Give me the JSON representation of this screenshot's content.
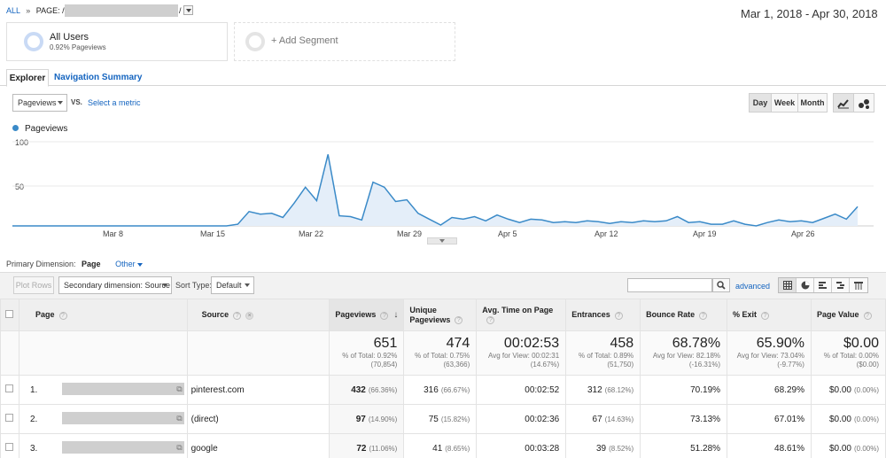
{
  "header": {
    "crumb_all": "ALL",
    "crumb_sep": "»",
    "crumb_page": "PAGE: /v",
    "crumb_page_end": "/",
    "date_range": "Mar 1, 2018 - Apr 30, 2018"
  },
  "segments": {
    "all_users_label": "All Users",
    "all_users_sub": "0.92% Pageviews",
    "add_segment": "+ Add Segment"
  },
  "tabs": [
    "Explorer",
    "Navigation Summary"
  ],
  "controls": {
    "metric_select": "Pageviews",
    "vs": "VS.",
    "select_metric": "Select a metric",
    "day": "Day",
    "week": "Week",
    "month": "Month"
  },
  "chart_data": {
    "type": "area",
    "series": [
      {
        "name": "Pageviews",
        "values": [
          0,
          0,
          0,
          0,
          0,
          0,
          0,
          0,
          0,
          0,
          0,
          0,
          0,
          0,
          0,
          0,
          0,
          0,
          0,
          0,
          2,
          17,
          14,
          15,
          10,
          27,
          46,
          30,
          85,
          12,
          11,
          7,
          52,
          46,
          29,
          31,
          15,
          8,
          1,
          10,
          8,
          11,
          6,
          13,
          8,
          4,
          8,
          7,
          4,
          5,
          4,
          6,
          5,
          3,
          5,
          4,
          6,
          5,
          6,
          11,
          4,
          5,
          2,
          2,
          6,
          2,
          0,
          4,
          7,
          5,
          6,
          4,
          9,
          14,
          8,
          23
        ]
      }
    ],
    "x_tick_labels": [
      "Mar 8",
      "Mar 15",
      "Mar 22",
      "Mar 29",
      "Apr 5",
      "Apr 12",
      "Apr 19",
      "Apr 26"
    ],
    "y_tick_labels": [
      "100",
      "50"
    ],
    "ylim": [
      0,
      100
    ],
    "color": "#3a8ac8"
  },
  "dimension": {
    "label": "Primary Dimension:",
    "current": "Page",
    "other": "Other"
  },
  "toolbar": {
    "plot_rows": "Plot Rows",
    "secondary": "Secondary dimension: Source",
    "sort_type_label": "Sort Type:",
    "sort_type_value": "Default",
    "advanced": "advanced"
  },
  "table": {
    "headers": {
      "page": "Page",
      "source": "Source",
      "pageviews": "Pageviews",
      "unique": "Unique Pageviews",
      "avg_time": "Avg. Time on Page",
      "entrances": "Entrances",
      "bounce": "Bounce Rate",
      "exit": "% Exit",
      "page_value": "Page Value"
    },
    "totals": {
      "pageviews": {
        "big": "651",
        "l1": "% of Total: 0.92%",
        "l2": "(70,854)"
      },
      "unique": {
        "big": "474",
        "l1": "% of Total: 0.75%",
        "l2": "(63,366)"
      },
      "avg_time": {
        "big": "00:02:53",
        "l1": "Avg for View: 00:02:31",
        "l2": "(14.67%)"
      },
      "entrances": {
        "big": "458",
        "l1": "% of Total: 0.89%",
        "l2": "(51,750)"
      },
      "bounce": {
        "big": "68.78%",
        "l1": "Avg for View: 82.18%",
        "l2": "(-16.31%)"
      },
      "exit": {
        "big": "65.90%",
        "l1": "Avg for View: 73.04%",
        "l2": "(-9.77%)"
      },
      "page_value": {
        "big": "$0.00",
        "l1": "% of Total: 0.00%",
        "l2": "($0.00)"
      }
    },
    "rows": [
      {
        "num": "1.",
        "source": "pinterest.com",
        "pv": "432",
        "pv_pct": "(66.36%)",
        "uq": "316",
        "uq_pct": "(66.67%)",
        "time": "00:02:52",
        "ent": "312",
        "ent_pct": "(68.12%)",
        "bounce": "70.19%",
        "exit": "68.29%",
        "val": "$0.00",
        "val_pct": "(0.00%)"
      },
      {
        "num": "2.",
        "source": "(direct)",
        "pv": "97",
        "pv_pct": "(14.90%)",
        "uq": "75",
        "uq_pct": "(15.82%)",
        "time": "00:02:36",
        "ent": "67",
        "ent_pct": "(14.63%)",
        "bounce": "73.13%",
        "exit": "67.01%",
        "val": "$0.00",
        "val_pct": "(0.00%)"
      },
      {
        "num": "3.",
        "source": "google",
        "pv": "72",
        "pv_pct": "(11.06%)",
        "uq": "41",
        "uq_pct": "(8.65%)",
        "time": "00:03:28",
        "ent": "39",
        "ent_pct": "(8.52%)",
        "bounce": "51.28%",
        "exit": "48.61%",
        "val": "$0.00",
        "val_pct": "(0.00%)"
      }
    ]
  }
}
